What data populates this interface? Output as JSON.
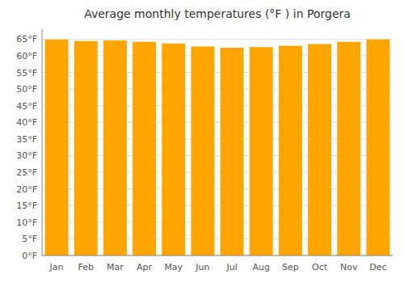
{
  "chart_data": {
    "type": "bar",
    "title": "Average monthly temperatures (°F ) in Porgera",
    "categories": [
      "Jan",
      "Feb",
      "Mar",
      "Apr",
      "May",
      "Jun",
      "Jul",
      "Aug",
      "Sep",
      "Oct",
      "Nov",
      "Dec"
    ],
    "values": [
      64.9,
      64.4,
      64.6,
      64.2,
      63.7,
      62.8,
      62.4,
      62.6,
      63.0,
      63.5,
      64.2,
      64.9
    ],
    "color": "#FFA500",
    "ylim": [
      0,
      68
    ],
    "yticks": [
      {
        "value": 0,
        "label": "0°F"
      },
      {
        "value": 5,
        "label": "5°F"
      },
      {
        "value": 10,
        "label": "10°F"
      },
      {
        "value": 15,
        "label": "15°F"
      },
      {
        "value": 20,
        "label": "20°F"
      },
      {
        "value": 25,
        "label": "25°F"
      },
      {
        "value": 30,
        "label": "30°F"
      },
      {
        "value": 35,
        "label": "35°F"
      },
      {
        "value": 40,
        "label": "40°F"
      },
      {
        "value": 45,
        "label": "45°F"
      },
      {
        "value": 50,
        "label": "50°F"
      },
      {
        "value": 55,
        "label": "55°F"
      },
      {
        "value": 60,
        "label": "60°F"
      },
      {
        "value": 65,
        "label": "65°F"
      }
    ],
    "grid": true
  }
}
